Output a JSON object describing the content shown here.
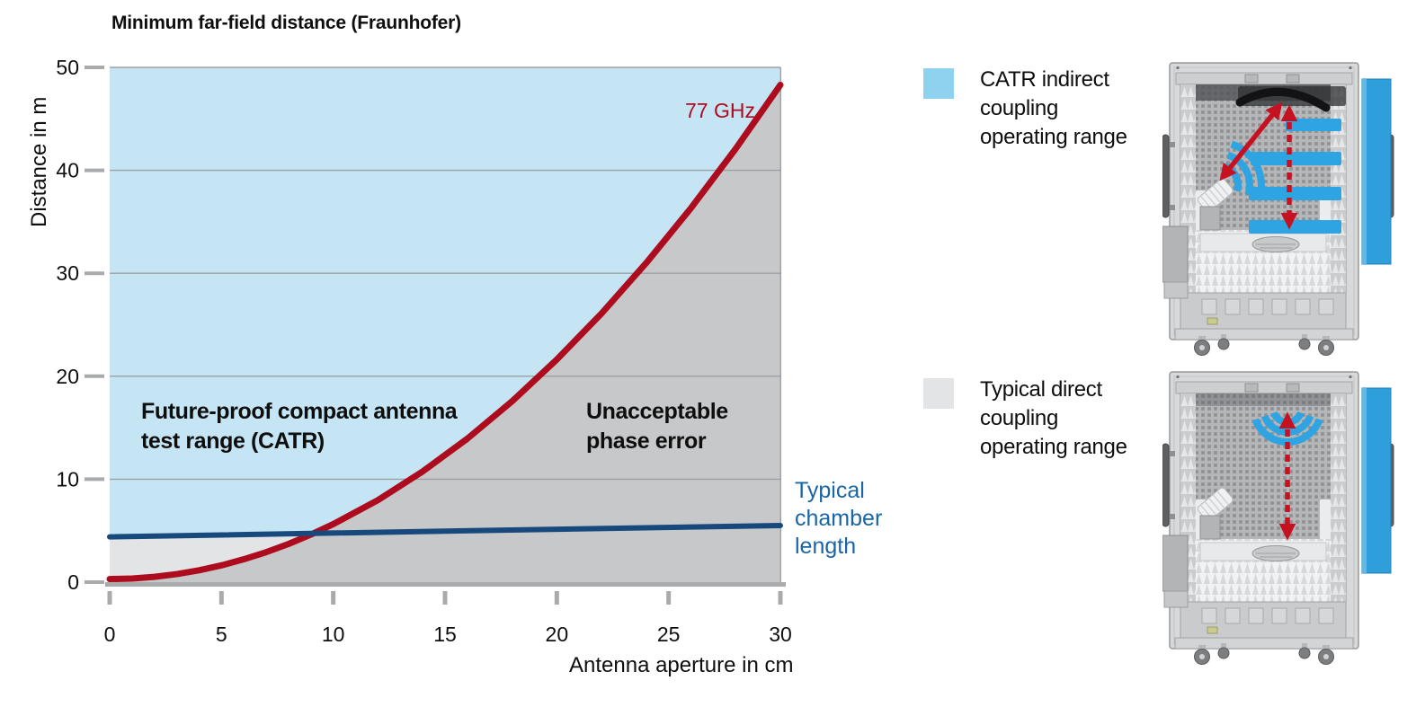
{
  "chart": {
    "title": "Minimum far-field distance (Fraunhofer)",
    "ylabel": "Distance in m",
    "xlabel": "Antenna aperture in cm",
    "annotations": {
      "catr_region": "Future-proof compact antenna\ntest range (CATR)",
      "phase_region": "Unacceptable\nphase error",
      "curve_label": "77 GHz",
      "chamber_line_label": "Typical\nchamber\nlength"
    }
  },
  "chart_data": {
    "type": "area",
    "title": "Minimum far-field distance (Fraunhofer)",
    "xlabel": "Antenna aperture in cm",
    "ylabel": "Distance in m",
    "xlim": [
      0,
      30
    ],
    "ylim": [
      0,
      50
    ],
    "xticks": [
      0,
      5,
      10,
      15,
      20,
      25,
      30
    ],
    "yticks": [
      0,
      10,
      20,
      30,
      40,
      50
    ],
    "grid": true,
    "legend_position": "right",
    "series": [
      {
        "name": "77 GHz minimum far-field distance",
        "label": "77 GHz",
        "color": "#ad0c1e",
        "x": [
          0,
          1,
          2,
          3,
          4,
          5,
          6,
          7,
          8,
          9,
          10,
          12,
          14,
          16,
          18,
          20,
          22,
          24,
          26,
          28,
          30
        ],
        "y": [
          0.3,
          0.35,
          0.51,
          0.78,
          1.15,
          1.63,
          2.22,
          2.91,
          3.71,
          4.62,
          5.63,
          7.97,
          10.75,
          13.94,
          17.57,
          21.62,
          26.1,
          31.0,
          36.33,
          42.09,
          48.3
        ]
      },
      {
        "name": "Typical chamber length",
        "label": "Typical chamber length",
        "color": "#17497c",
        "x": [
          0,
          30
        ],
        "y": [
          4.4,
          5.5
        ]
      }
    ],
    "regions": [
      {
        "name": "CATR indirect coupling operating range (above far-field curve)",
        "color": "#c5e5f4"
      },
      {
        "name": "Typical direct coupling operating range (below chamber length line)",
        "color": "#e3e4e6"
      },
      {
        "name": "Unacceptable phase error (below far-field curve)",
        "color": "#c7c8ca"
      }
    ]
  },
  "legend": {
    "items": [
      {
        "label": "CATR indirect\ncoupling\noperating range",
        "color": "#8ed2ef"
      },
      {
        "label": "Typical direct\ncoupling\noperating range",
        "color": "#e3e4e6"
      }
    ]
  },
  "colors": {
    "curve_red": "#ad0c1e",
    "chamber_line_navy": "#17497c",
    "label_blue": "#1965a5",
    "area_blue": "#c5e5f4",
    "area_light_gray": "#e3e4e6",
    "area_gray": "#c7c8ca",
    "axis_gray": "#a8aaac",
    "grid_gray": "#9da0a2",
    "wave_blue": "#2ea4e3",
    "door_blue": "#2f9fdb",
    "arrow_red": "#c51120"
  }
}
